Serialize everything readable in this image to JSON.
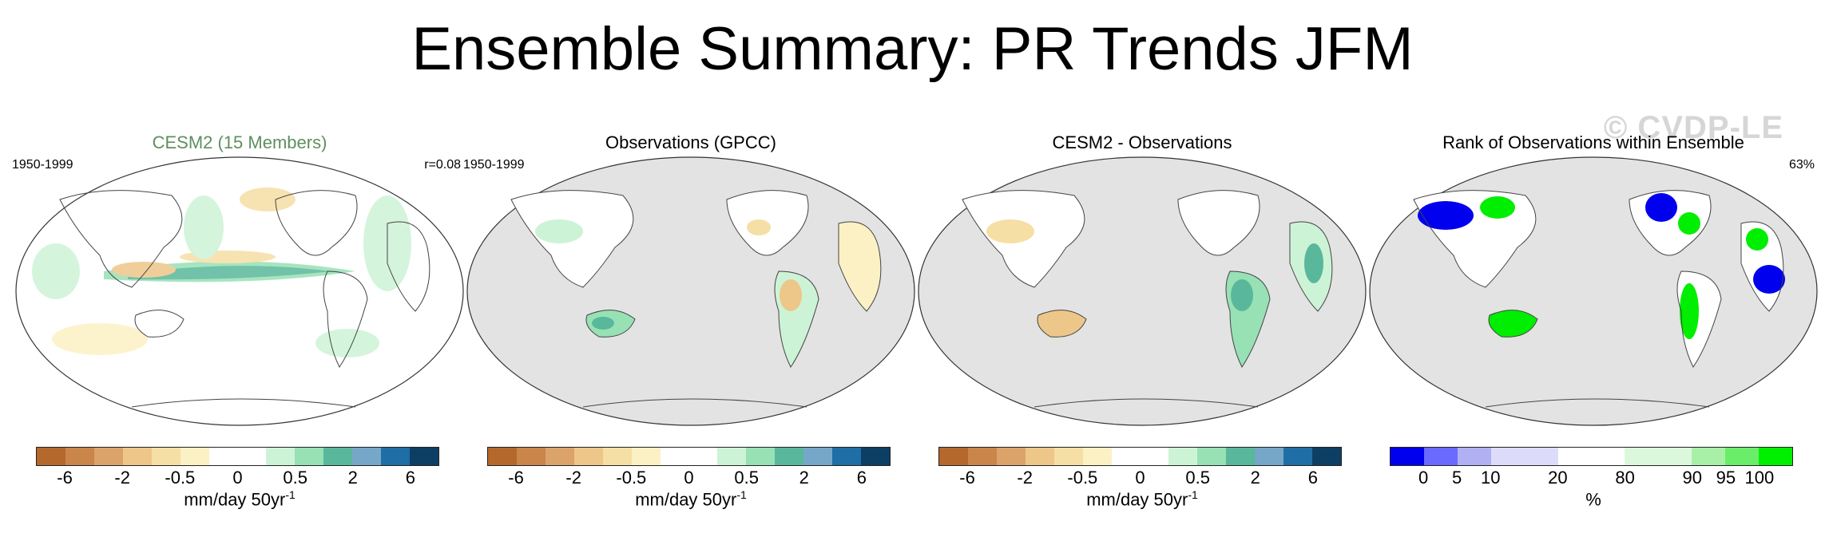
{
  "title": "Ensemble Summary: PR Trends JFM",
  "watermark": "© CVDP-LE",
  "colors": {
    "land_mask": "#e3e3e3",
    "ocean": "#ffffff",
    "coast": "#444444",
    "title_green": "#5f8f5f"
  },
  "panels": [
    {
      "title": "CESM2 (15 Members)",
      "period": "1950-1999",
      "stat": "r=0.08",
      "units": "mm/day 50yr",
      "units_sup": "-1",
      "ticks": [
        "-6",
        "-2",
        "-0.5",
        "0",
        "0.5",
        "2",
        "6"
      ],
      "palette": [
        "#b5682c",
        "#c9854a",
        "#dba36a",
        "#edc689",
        "#f6dfa4",
        "#fbf1c4",
        "#ffffff",
        "#ffffff",
        "#cdf3d6",
        "#97e1b5",
        "#59b89b",
        "#76a7c8",
        "#1f6ea6",
        "#0d3f64"
      ]
    },
    {
      "title": "Observations (GPCC)",
      "period": "1950-1999",
      "stat": "",
      "units": "mm/day 50yr",
      "units_sup": "-1",
      "ticks": [
        "-6",
        "-2",
        "-0.5",
        "0",
        "0.5",
        "2",
        "6"
      ],
      "palette": [
        "#b5682c",
        "#c9854a",
        "#dba36a",
        "#edc689",
        "#f6dfa4",
        "#fbf1c4",
        "#ffffff",
        "#ffffff",
        "#cdf3d6",
        "#97e1b5",
        "#59b89b",
        "#76a7c8",
        "#1f6ea6",
        "#0d3f64"
      ]
    },
    {
      "title": "CESM2 - Observations",
      "period": "",
      "stat": "",
      "units": "mm/day 50yr",
      "units_sup": "-1",
      "ticks": [
        "-6",
        "-2",
        "-0.5",
        "0",
        "0.5",
        "2",
        "6"
      ],
      "palette": [
        "#b5682c",
        "#c9854a",
        "#dba36a",
        "#edc689",
        "#f6dfa4",
        "#fbf1c4",
        "#ffffff",
        "#ffffff",
        "#cdf3d6",
        "#97e1b5",
        "#59b89b",
        "#76a7c8",
        "#1f6ea6",
        "#0d3f64"
      ]
    },
    {
      "title": "Rank of Observations within Ensemble",
      "period": "",
      "stat": "63%",
      "units": "%",
      "units_sup": "",
      "ticks": [
        "0",
        "5",
        "10",
        "20",
        "80",
        "90",
        "95",
        "100"
      ],
      "palette": [
        "#0000ee",
        "#6a6aff",
        "#b0b0f2",
        "#dcdcfa",
        "#dcdcfa",
        "#ffffff",
        "#ffffff",
        "#dcf8dc",
        "#dcf8dc",
        "#a8f0a8",
        "#6aee6a",
        "#00ee00"
      ]
    }
  ]
}
